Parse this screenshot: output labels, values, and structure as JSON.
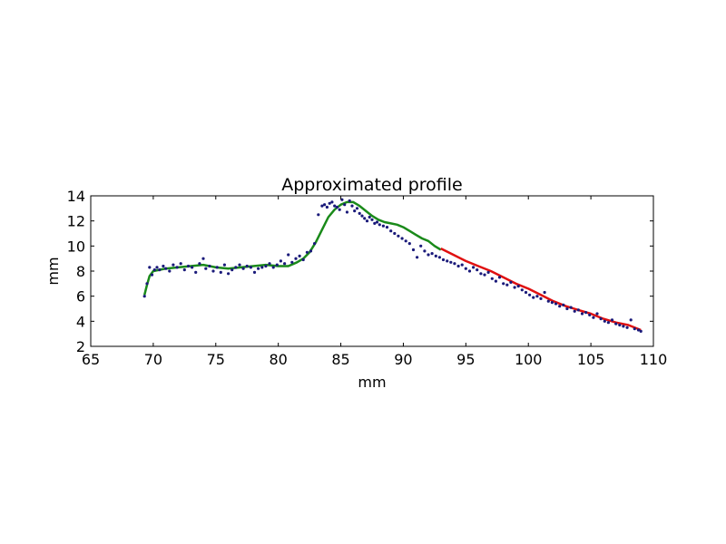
{
  "chart_data": {
    "type": "scatter",
    "title": "Approximated profile",
    "xlabel": "mm",
    "ylabel": "mm",
    "xlim": [
      65,
      110
    ],
    "ylim": [
      2,
      14
    ],
    "xticks": [
      65,
      70,
      75,
      80,
      85,
      90,
      95,
      100,
      105,
      110
    ],
    "yticks": [
      2,
      4,
      6,
      8,
      10,
      12,
      14
    ],
    "grid": false,
    "colors": {
      "points": "#1a1a7a",
      "fit_left": "#1a8a1a",
      "fit_right": "#e01010"
    },
    "series": [
      {
        "kind": "points",
        "x": [
          69.3,
          69.5,
          69.7,
          69.9,
          70.1,
          70.3,
          70.5,
          70.8,
          71.0,
          71.3,
          71.6,
          71.9,
          72.2,
          72.5,
          72.8,
          73.1,
          73.4,
          73.7,
          74.0,
          74.2,
          74.5,
          74.8,
          75.1,
          75.4,
          75.7,
          76.0,
          76.3,
          76.6,
          76.9,
          77.2,
          77.5,
          77.8,
          78.1,
          78.4,
          78.7,
          79.0,
          79.3,
          79.6,
          79.9,
          80.2,
          80.5,
          80.8,
          81.1,
          81.4,
          81.7,
          82.0,
          82.3,
          82.6,
          82.9,
          83.2,
          83.5,
          83.7,
          83.9,
          84.1,
          84.3,
          84.5,
          84.7,
          84.9,
          85.1,
          85.3,
          85.5,
          85.7,
          85.9,
          86.1,
          86.3,
          86.5,
          86.7,
          86.9,
          87.1,
          87.3,
          87.5,
          87.7,
          87.9,
          88.1,
          88.4,
          88.7,
          89.0,
          89.3,
          89.6,
          89.9,
          90.2,
          90.5,
          90.8,
          91.1,
          91.4,
          91.7,
          92.0,
          92.3,
          92.6,
          92.9,
          93.2,
          93.5,
          93.8,
          94.1,
          94.4,
          94.7,
          95.0,
          95.3,
          95.6,
          95.9,
          96.2,
          96.5,
          96.8,
          97.1,
          97.4,
          97.7,
          98.0,
          98.3,
          98.6,
          98.9,
          99.2,
          99.5,
          99.8,
          100.1,
          100.4,
          100.7,
          101.0,
          101.3,
          101.6,
          101.9,
          102.2,
          102.5,
          102.8,
          103.1,
          103.4,
          103.7,
          104.0,
          104.3,
          104.6,
          104.9,
          105.2,
          105.5,
          105.8,
          106.1,
          106.4,
          106.7,
          107.0,
          107.3,
          107.6,
          107.9,
          108.2,
          108.5,
          108.8,
          109.0
        ],
        "y": [
          6.0,
          7.0,
          8.3,
          7.7,
          8.1,
          8.3,
          8.1,
          8.4,
          8.2,
          8.0,
          8.5,
          8.3,
          8.6,
          8.1,
          8.4,
          8.3,
          7.9,
          8.6,
          9.0,
          8.2,
          8.4,
          8.0,
          8.3,
          7.9,
          8.5,
          7.8,
          8.1,
          8.3,
          8.5,
          8.2,
          8.4,
          8.3,
          7.9,
          8.2,
          8.3,
          8.4,
          8.6,
          8.3,
          8.5,
          8.8,
          8.6,
          9.3,
          8.7,
          9.0,
          9.2,
          8.9,
          9.5,
          9.6,
          10.2,
          12.5,
          13.2,
          13.3,
          13.1,
          13.4,
          13.5,
          13.2,
          13.1,
          12.9,
          13.7,
          13.3,
          12.7,
          13.6,
          13.2,
          12.8,
          13.0,
          12.6,
          12.4,
          12.2,
          12.0,
          12.3,
          12.1,
          11.8,
          11.9,
          11.7,
          11.6,
          11.5,
          11.2,
          11.0,
          10.8,
          10.6,
          10.4,
          10.2,
          9.7,
          9.1,
          10.0,
          9.6,
          9.3,
          9.4,
          9.2,
          9.1,
          8.9,
          8.8,
          8.7,
          8.6,
          8.4,
          8.5,
          8.2,
          8.0,
          8.3,
          8.1,
          7.8,
          7.7,
          7.9,
          7.4,
          7.2,
          7.5,
          7.0,
          6.9,
          7.1,
          6.7,
          6.8,
          6.5,
          6.3,
          6.1,
          5.9,
          6.0,
          5.8,
          6.3,
          5.6,
          5.5,
          5.4,
          5.2,
          5.3,
          5.0,
          5.1,
          4.8,
          4.9,
          4.6,
          4.7,
          4.5,
          4.3,
          4.6,
          4.2,
          4.0,
          3.9,
          4.1,
          3.8,
          3.7,
          3.6,
          3.5,
          4.1,
          3.4,
          3.3,
          3.2
        ]
      },
      {
        "kind": "fit-left",
        "x": [
          69.3,
          69.5,
          69.7,
          70.0,
          70.5,
          71.0,
          72.0,
          73.0,
          74.0,
          75.0,
          76.0,
          77.0,
          78.0,
          79.0,
          80.0,
          80.8,
          81.5,
          82.0,
          82.5,
          83.0,
          83.5,
          84.0,
          84.5,
          85.0,
          85.5,
          86.0,
          86.5,
          87.0,
          87.5,
          88.0,
          88.5,
          89.0,
          89.5,
          90.0,
          90.5,
          91.0,
          91.5,
          92.0,
          92.5,
          93.0
        ],
        "y": [
          6.1,
          6.9,
          7.6,
          8.0,
          8.1,
          8.2,
          8.3,
          8.4,
          8.5,
          8.3,
          8.2,
          8.3,
          8.4,
          8.5,
          8.4,
          8.4,
          8.7,
          9.0,
          9.5,
          10.3,
          11.3,
          12.3,
          12.9,
          13.3,
          13.5,
          13.5,
          13.2,
          12.8,
          12.4,
          12.1,
          11.9,
          11.8,
          11.7,
          11.5,
          11.2,
          10.9,
          10.6,
          10.4,
          10.0,
          9.7
        ]
      },
      {
        "kind": "fit-right",
        "x": [
          93.0,
          94.0,
          95.0,
          96.0,
          97.0,
          98.0,
          99.0,
          100.0,
          101.0,
          102.0,
          103.0,
          104.0,
          105.0,
          106.0,
          107.0,
          108.0,
          109.0
        ],
        "y": [
          9.8,
          9.3,
          8.8,
          8.4,
          8.0,
          7.5,
          7.0,
          6.6,
          6.1,
          5.6,
          5.2,
          4.9,
          4.6,
          4.2,
          3.9,
          3.7,
          3.3
        ]
      }
    ]
  }
}
